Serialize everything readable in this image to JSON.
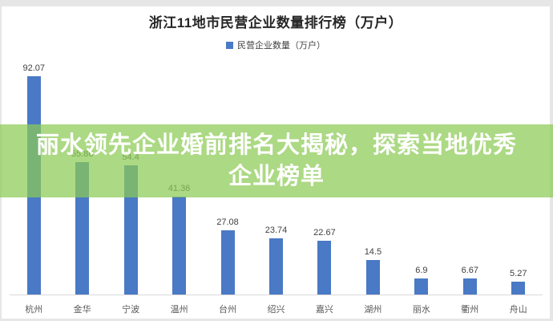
{
  "title": "浙江11地市民营企业数量排行榜（万户）",
  "legend": {
    "label": "民营企业数量（万户）",
    "marker": "blue-square"
  },
  "banner": {
    "line1": "丽水领先企业婚前排名大揭秘，探索当地优秀",
    "line2": "企业榜单",
    "bg_color": "rgba(140,203,85,0.72)",
    "text_color": "#ffffff"
  },
  "colors": {
    "bar": "#4a79c5",
    "axis_line": "#d9d9d9",
    "title_text": "#262626",
    "label_text": "#404040",
    "category_text": "#595959",
    "card_bg": "#ffffff",
    "frame_bg": "#e6e6e6"
  },
  "chart_data": {
    "type": "bar",
    "categories": [
      "杭州",
      "金华",
      "宁波",
      "温州",
      "台州",
      "绍兴",
      "嘉兴",
      "湖州",
      "丽水",
      "衢州",
      "舟山"
    ],
    "values": [
      92.07,
      55.86,
      54.4,
      41.36,
      27.08,
      23.74,
      22.67,
      14.5,
      6.9,
      6.67,
      5.27
    ],
    "value_labels": [
      "92.07",
      "55.86",
      "54.4",
      "41.36",
      "27.08",
      "23.74",
      "22.67",
      "14.5",
      "6.9",
      "6.67",
      "5.27"
    ],
    "title": "浙江11地市民营企业数量排行榜（万户）",
    "xlabel": "",
    "ylabel": "",
    "ylim": [
      0,
      100
    ],
    "grid": false,
    "legend_entries": [
      "民营企业数量（万户）"
    ],
    "legend_position": "top",
    "bar_color": "#4a79c5"
  }
}
